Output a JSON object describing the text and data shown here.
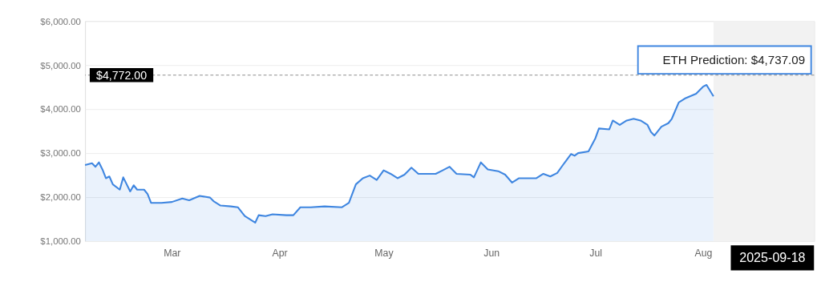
{
  "chart_data": {
    "type": "area",
    "x": [
      "2025-02-04",
      "2025-02-06",
      "2025-02-07",
      "2025-02-08",
      "2025-02-09",
      "2025-02-10",
      "2025-02-11",
      "2025-02-12",
      "2025-02-14",
      "2025-02-15",
      "2025-02-17",
      "2025-02-18",
      "2025-02-19",
      "2025-02-21",
      "2025-02-22",
      "2025-02-23",
      "2025-02-26",
      "2025-03-01",
      "2025-03-04",
      "2025-03-06",
      "2025-03-09",
      "2025-03-12",
      "2025-03-13",
      "2025-03-15",
      "2025-03-18",
      "2025-03-20",
      "2025-03-22",
      "2025-03-25",
      "2025-03-26",
      "2025-03-28",
      "2025-03-30",
      "2025-04-03",
      "2025-04-05",
      "2025-04-07",
      "2025-04-10",
      "2025-04-14",
      "2025-04-19",
      "2025-04-21",
      "2025-04-23",
      "2025-04-25",
      "2025-04-27",
      "2025-04-29",
      "2025-05-01",
      "2025-05-03",
      "2025-05-05",
      "2025-05-07",
      "2025-05-09",
      "2025-05-11",
      "2025-05-16",
      "2025-05-18",
      "2025-05-20",
      "2025-05-22",
      "2025-05-26",
      "2025-05-27",
      "2025-05-29",
      "2025-05-31",
      "2025-06-03",
      "2025-06-05",
      "2025-06-07",
      "2025-06-09",
      "2025-06-14",
      "2025-06-16",
      "2025-06-18",
      "2025-06-20",
      "2025-06-22",
      "2025-06-24",
      "2025-06-25",
      "2025-06-26",
      "2025-06-29",
      "2025-07-01",
      "2025-07-02",
      "2025-07-05",
      "2025-07-06",
      "2025-07-08",
      "2025-07-10",
      "2025-07-12",
      "2025-07-14",
      "2025-07-16",
      "2025-07-17",
      "2025-07-18",
      "2025-07-20",
      "2025-07-22",
      "2025-07-23",
      "2025-07-25",
      "2025-07-27",
      "2025-07-30",
      "2025-08-01",
      "2025-08-02",
      "2025-08-04"
    ],
    "series": [
      {
        "color": "#3f86e0",
        "values": [
          2730,
          2770,
          2690,
          2790,
          2630,
          2430,
          2470,
          2290,
          2170,
          2450,
          2130,
          2270,
          2170,
          2170,
          2070,
          1870,
          1870,
          1890,
          1970,
          1930,
          2030,
          1990,
          1910,
          1810,
          1790,
          1770,
          1570,
          1420,
          1590,
          1570,
          1610,
          1590,
          1590,
          1770,
          1770,
          1790,
          1770,
          1870,
          2290,
          2430,
          2490,
          2390,
          2610,
          2530,
          2430,
          2510,
          2670,
          2530,
          2530,
          2610,
          2690,
          2530,
          2510,
          2450,
          2790,
          2630,
          2590,
          2510,
          2330,
          2430,
          2430,
          2530,
          2470,
          2550,
          2770,
          2980,
          2940,
          3000,
          3040,
          3340,
          3560,
          3540,
          3740,
          3640,
          3740,
          3780,
          3740,
          3640,
          3480,
          3400,
          3600,
          3680,
          3780,
          4150,
          4250,
          4350,
          4510,
          4550,
          4290
        ]
      }
    ],
    "xlim": [
      "2025-02-04",
      "2025-09-02"
    ],
    "xticks": [
      {
        "value": "2025-03-01",
        "label": "Mar"
      },
      {
        "value": "2025-04-01",
        "label": "Apr"
      },
      {
        "value": "2025-05-01",
        "label": "May"
      },
      {
        "value": "2025-06-01",
        "label": "Jun"
      },
      {
        "value": "2025-07-01",
        "label": "Jul"
      },
      {
        "value": "2025-08-01",
        "label": "Aug"
      }
    ],
    "ylim": [
      1000,
      6000
    ],
    "yticks": [
      {
        "value": 1000,
        "label": "$1,000.00"
      },
      {
        "value": 2000,
        "label": "$2,000.00"
      },
      {
        "value": 3000,
        "label": "$3,000.00"
      },
      {
        "value": 4000,
        "label": "$4,000.00"
      },
      {
        "value": 5000,
        "label": "$5,000.00"
      },
      {
        "value": 6000,
        "label": "$6,000.00"
      }
    ],
    "grid": "y",
    "ref_lines": [
      {
        "axis": "y",
        "value": 4772,
        "label": "$4,772.00",
        "color": "#888888",
        "line_style": "dashed"
      }
    ],
    "bands": [
      {
        "axis": "x",
        "from": "2025-08-04",
        "to": "2025-09-02",
        "color": "#f2f2f2"
      }
    ],
    "annotations": [
      {
        "text": "ETH Prediction: $4,737.09",
        "x": "2025-09-02",
        "y": 4737.09
      },
      "2025-09-18"
    ]
  }
}
